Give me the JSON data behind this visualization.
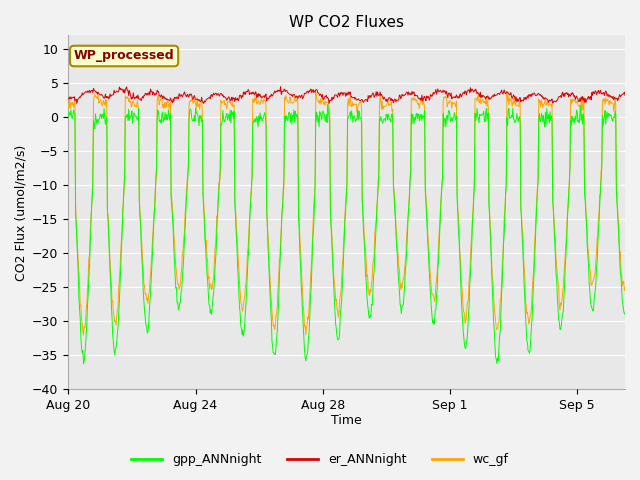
{
  "title": "WP CO2 Fluxes",
  "xlabel": "Time",
  "ylabel": "CO2 Flux (umol/m2/s)",
  "ylim": [
    -40,
    12
  ],
  "yticks": [
    10,
    5,
    0,
    -5,
    -10,
    -15,
    -20,
    -25,
    -30,
    -35,
    -40
  ],
  "n_days": 17.5,
  "n_half_hours": 840,
  "gpp_color": "#00FF00",
  "er_color": "#DD0000",
  "wc_color": "#FFA500",
  "plot_bg_color": "#E8E8E8",
  "fig_bg_color": "#F2F2F2",
  "grid_color": "#FFFFFF",
  "wp_label": "WP_processed",
  "wp_text_color": "#880000",
  "wp_bg_color": "#FFFFCC",
  "wp_border_color": "#AA8800",
  "legend_entries": [
    "gpp_ANNnight",
    "er_ANNnight",
    "wc_gf"
  ],
  "xtick_labels": [
    "Aug 20",
    "Aug 24",
    "Aug 28",
    "Sep 1",
    "Sep 5"
  ],
  "xtick_days": [
    0,
    4,
    8,
    12,
    16
  ],
  "title_fontsize": 11,
  "axis_fontsize": 9,
  "tick_fontsize": 9,
  "legend_fontsize": 9
}
